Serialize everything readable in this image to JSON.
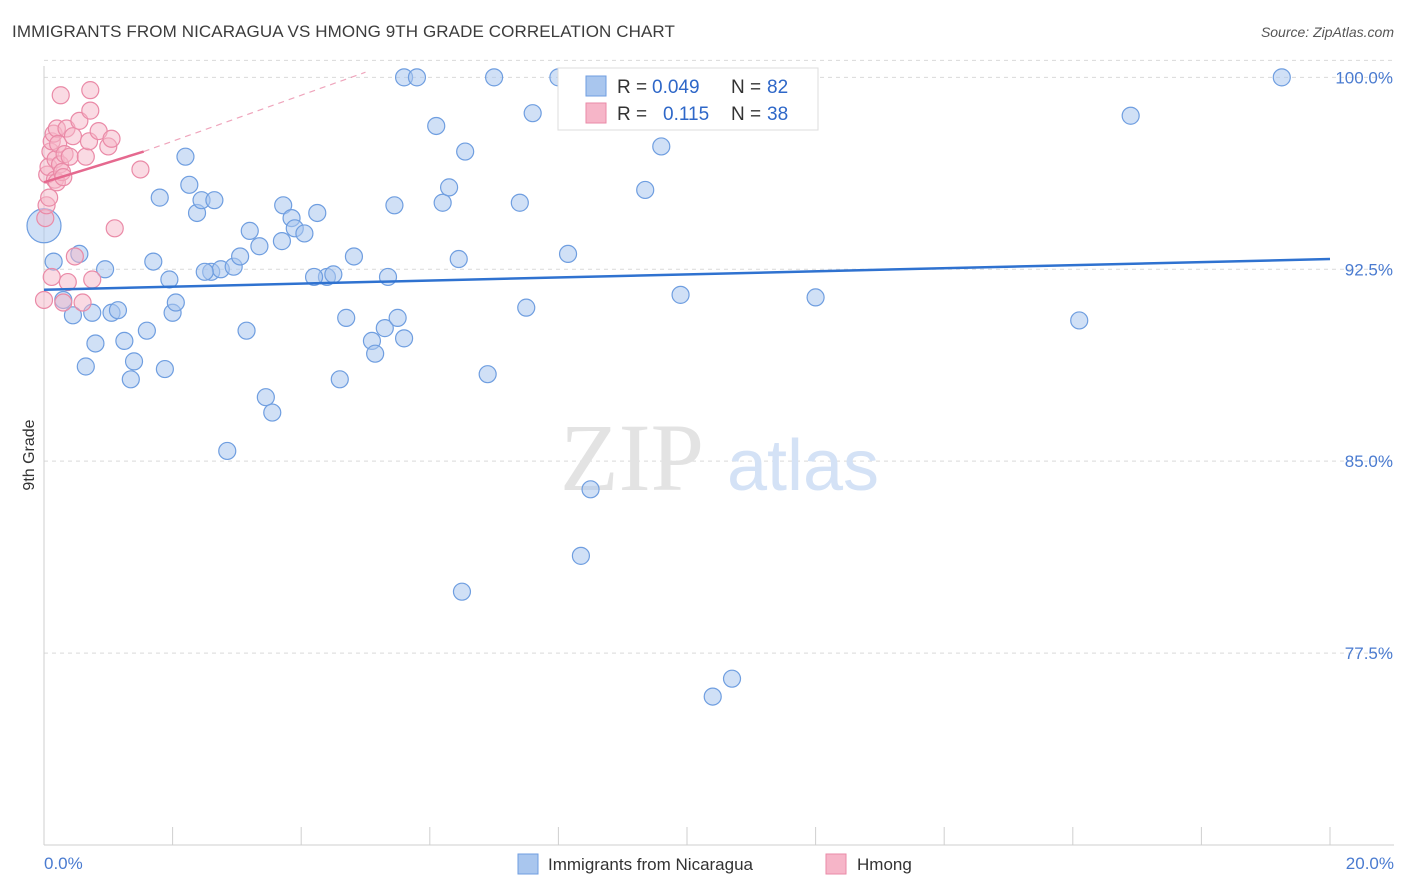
{
  "chart_data": {
    "type": "scatter",
    "title": "IMMIGRANTS FROM NICARAGUA VS HMONG 9TH GRADE CORRELATION CHART",
    "source": "Source: ZipAtlas.com",
    "xlabel": "",
    "ylabel": "9th Grade",
    "xlim": [
      0.0,
      20.0
    ],
    "ylim": [
      70.0,
      100.6
    ],
    "x_tick_labels": [
      "0.0%",
      "20.0%"
    ],
    "y_ticks": [
      77.5,
      85.0,
      92.5,
      100.0
    ],
    "y_tick_labels": [
      "77.5%",
      "85.0%",
      "92.5%",
      "100.0%"
    ],
    "watermark": {
      "zip": "ZIP",
      "atlas": "atlas"
    },
    "legend": {
      "rows": [
        {
          "r_label": "R =",
          "r_value": "0.049",
          "n_label": "N =",
          "n_value": "82"
        },
        {
          "r_label": "R =",
          "r_value": "0.115",
          "n_label": "N =",
          "n_value": "38"
        }
      ]
    },
    "colors": {
      "blue_fill": "#a9c6ee",
      "blue_stroke": "#6f9ee0",
      "blue_line": "#2f72d0",
      "pink_fill": "#f6b5c8",
      "pink_stroke": "#ea8aa7",
      "pink_line": "#e5698f",
      "grid": "#d9d9d9",
      "tick_label": "#4a7bd0"
    },
    "series": [
      {
        "name": "Immigrants from Nicaragua",
        "trend": {
          "x": [
            0.0,
            20.0
          ],
          "y": [
            91.7,
            92.9
          ]
        },
        "points": [
          [
            0.0,
            94.2
          ],
          [
            0.15,
            92.8
          ],
          [
            0.3,
            91.3
          ],
          [
            0.45,
            90.7
          ],
          [
            0.55,
            93.1
          ],
          [
            0.65,
            88.7
          ],
          [
            0.75,
            90.8
          ],
          [
            0.8,
            89.6
          ],
          [
            0.95,
            92.5
          ],
          [
            1.05,
            90.8
          ],
          [
            1.15,
            90.9
          ],
          [
            1.25,
            89.7
          ],
          [
            1.35,
            88.2
          ],
          [
            1.4,
            88.9
          ],
          [
            1.6,
            90.1
          ],
          [
            1.7,
            92.8
          ],
          [
            1.8,
            95.3
          ],
          [
            1.88,
            88.6
          ],
          [
            1.95,
            92.1
          ],
          [
            2.0,
            90.8
          ],
          [
            2.05,
            91.2
          ],
          [
            2.2,
            96.9
          ],
          [
            2.26,
            95.8
          ],
          [
            2.38,
            94.7
          ],
          [
            2.45,
            95.2
          ],
          [
            2.6,
            92.4
          ],
          [
            2.65,
            95.2
          ],
          [
            2.75,
            92.5
          ],
          [
            2.85,
            85.4
          ],
          [
            2.95,
            92.6
          ],
          [
            3.05,
            93.0
          ],
          [
            3.15,
            90.1
          ],
          [
            3.2,
            94.0
          ],
          [
            3.35,
            93.4
          ],
          [
            3.45,
            87.5
          ],
          [
            3.55,
            86.9
          ],
          [
            3.7,
            93.6
          ],
          [
            3.72,
            95.0
          ],
          [
            3.85,
            94.5
          ],
          [
            3.9,
            94.1
          ],
          [
            4.05,
            93.9
          ],
          [
            4.25,
            94.7
          ],
          [
            4.4,
            92.2
          ],
          [
            4.5,
            92.3
          ],
          [
            4.6,
            88.2
          ],
          [
            4.7,
            90.6
          ],
          [
            4.82,
            93.0
          ],
          [
            5.1,
            89.7
          ],
          [
            5.15,
            89.2
          ],
          [
            5.3,
            90.2
          ],
          [
            5.45,
            95.0
          ],
          [
            5.5,
            90.6
          ],
          [
            5.6,
            89.8
          ],
          [
            5.6,
            100.0
          ],
          [
            5.8,
            100.0
          ],
          [
            6.1,
            98.1
          ],
          [
            6.2,
            95.1
          ],
          [
            6.3,
            95.7
          ],
          [
            6.45,
            92.9
          ],
          [
            6.5,
            79.9
          ],
          [
            6.55,
            97.1
          ],
          [
            6.9,
            88.4
          ],
          [
            7.0,
            100.0
          ],
          [
            7.4,
            95.1
          ],
          [
            7.5,
            91.0
          ],
          [
            7.6,
            98.6
          ],
          [
            8.0,
            100.0
          ],
          [
            8.15,
            93.1
          ],
          [
            8.35,
            81.3
          ],
          [
            8.5,
            83.9
          ],
          [
            9.35,
            95.6
          ],
          [
            9.6,
            97.3
          ],
          [
            9.9,
            91.5
          ],
          [
            10.4,
            75.8
          ],
          [
            10.7,
            76.5
          ],
          [
            12.0,
            91.4
          ],
          [
            4.2,
            92.2
          ],
          [
            5.35,
            92.2
          ],
          [
            16.1,
            90.5
          ],
          [
            16.9,
            98.5
          ],
          [
            19.25,
            100.0
          ],
          [
            2.5,
            92.4
          ]
        ]
      },
      {
        "name": "Hmong",
        "trend": {
          "x": [
            0.0,
            1.55
          ],
          "y": [
            95.9,
            97.1
          ]
        },
        "trend_extension": {
          "x": [
            1.55,
            5.0
          ],
          "y": [
            97.1,
            100.2
          ]
        },
        "points": [
          [
            0.0,
            91.3
          ],
          [
            0.02,
            94.5
          ],
          [
            0.04,
            95.0
          ],
          [
            0.05,
            96.2
          ],
          [
            0.07,
            96.5
          ],
          [
            0.08,
            95.3
          ],
          [
            0.1,
            97.1
          ],
          [
            0.12,
            92.2
          ],
          [
            0.12,
            97.5
          ],
          [
            0.15,
            97.8
          ],
          [
            0.17,
            96.0
          ],
          [
            0.18,
            96.8
          ],
          [
            0.2,
            98.0
          ],
          [
            0.2,
            95.9
          ],
          [
            0.22,
            97.4
          ],
          [
            0.25,
            96.6
          ],
          [
            0.26,
            99.3
          ],
          [
            0.28,
            96.3
          ],
          [
            0.3,
            96.1
          ],
          [
            0.3,
            91.2
          ],
          [
            0.32,
            97.0
          ],
          [
            0.35,
            98.0
          ],
          [
            0.37,
            92.0
          ],
          [
            0.4,
            96.9
          ],
          [
            0.45,
            97.7
          ],
          [
            0.48,
            93.0
          ],
          [
            0.55,
            98.3
          ],
          [
            0.6,
            91.2
          ],
          [
            0.65,
            96.9
          ],
          [
            0.7,
            97.5
          ],
          [
            0.72,
            98.7
          ],
          [
            0.72,
            99.5
          ],
          [
            0.75,
            92.1
          ],
          [
            0.85,
            97.9
          ],
          [
            1.0,
            97.3
          ],
          [
            1.05,
            97.6
          ],
          [
            1.1,
            94.1
          ],
          [
            1.5,
            96.4
          ]
        ]
      }
    ]
  }
}
